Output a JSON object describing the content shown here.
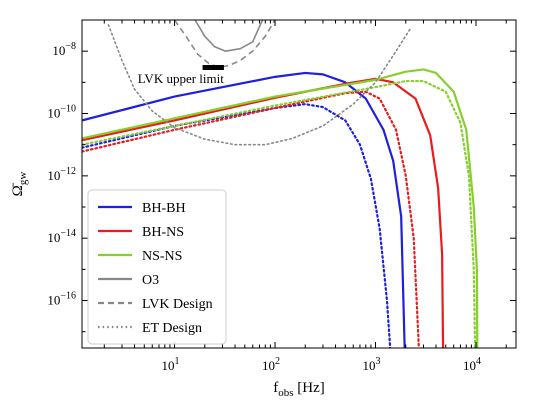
{
  "chart_data": {
    "type": "line",
    "xscale": "log",
    "yscale": "log",
    "xlim": [
      1.2,
      25000
    ],
    "ylim": [
      3e-18,
      1e-07
    ],
    "grid": false,
    "legend_position": "lower-left",
    "xlabel": {
      "base": "f",
      "sub": "obs",
      "rest": " [Hz]"
    },
    "ylabel": {
      "base": "Ω̄",
      "sub": "gw"
    },
    "x_ticks": [
      {
        "value": 10,
        "base": "10",
        "exp": "1"
      },
      {
        "value": 100,
        "base": "10",
        "exp": "2"
      },
      {
        "value": 1000,
        "base": "10",
        "exp": "3"
      },
      {
        "value": 10000,
        "base": "10",
        "exp": "4"
      }
    ],
    "y_ticks": [
      {
        "value": 1e-16,
        "base": "10",
        "exp": "−16"
      },
      {
        "value": 1e-14,
        "base": "10",
        "exp": "−14"
      },
      {
        "value": 1e-12,
        "base": "10",
        "exp": "−12"
      },
      {
        "value": 1e-10,
        "base": "10",
        "exp": "−10"
      },
      {
        "value": 1e-08,
        "base": "10",
        "exp": "−8"
      }
    ],
    "annotation": {
      "text": "LVK upper limit",
      "x": 4.3,
      "y": 7e-10,
      "bar_x": [
        19,
        31
      ],
      "bar_y": 3e-09
    },
    "legend": [
      {
        "label": "BH-BH",
        "color": "#1f1fe0",
        "style": "solid"
      },
      {
        "label": "BH-NS",
        "color": "#e81c1c",
        "style": "solid"
      },
      {
        "label": "NS-NS",
        "color": "#86cf2c",
        "style": "solid"
      },
      {
        "label": "O3",
        "color": "#888888",
        "style": "solid"
      },
      {
        "label": "LVK Design",
        "color": "#888888",
        "style": "dashed"
      },
      {
        "label": "ET Design",
        "color": "#888888",
        "style": "dotted"
      }
    ],
    "series": [
      {
        "label": "BH-BH",
        "color": "#1f1fe0",
        "style": "solid",
        "points": [
          [
            1.2,
            6e-11
          ],
          [
            10,
            3.5e-10
          ],
          [
            100,
            1.5e-09
          ],
          [
            200,
            2e-09
          ],
          [
            300,
            1.8e-09
          ],
          [
            500,
            1e-09
          ],
          [
            800,
            3e-10
          ],
          [
            1200,
            3e-11
          ],
          [
            1500,
            3e-12
          ],
          [
            1800,
            5e-14
          ],
          [
            1950,
            3e-18
          ]
        ]
      },
      {
        "label": "BH-BH",
        "color": "#1f1fe0",
        "style": "dotted",
        "points": [
          [
            1.2,
            8e-12
          ],
          [
            10,
            4e-11
          ],
          [
            100,
            1.5e-10
          ],
          [
            200,
            2e-10
          ],
          [
            300,
            1.6e-10
          ],
          [
            500,
            6e-11
          ],
          [
            700,
            1e-11
          ],
          [
            900,
            8e-13
          ],
          [
            1100,
            2e-14
          ],
          [
            1300,
            1e-16
          ],
          [
            1400,
            3e-18
          ]
        ]
      },
      {
        "label": "BH-NS",
        "color": "#e81c1c",
        "style": "solid",
        "points": [
          [
            1.2,
            1.4e-11
          ],
          [
            10,
            6e-11
          ],
          [
            100,
            3.2e-10
          ],
          [
            500,
            9e-10
          ],
          [
            1000,
            1.3e-09
          ],
          [
            1500,
            1e-09
          ],
          [
            2500,
            3e-10
          ],
          [
            3500,
            2e-11
          ],
          [
            4200,
            4e-13
          ],
          [
            4600,
            3e-15
          ],
          [
            4700,
            3e-18
          ]
        ]
      },
      {
        "label": "BH-NS",
        "color": "#e81c1c",
        "style": "dotted",
        "points": [
          [
            1.2,
            6e-12
          ],
          [
            10,
            3e-11
          ],
          [
            100,
            1.5e-10
          ],
          [
            500,
            4.5e-10
          ],
          [
            800,
            5e-10
          ],
          [
            1100,
            3e-10
          ],
          [
            1600,
            3e-11
          ],
          [
            2000,
            1e-12
          ],
          [
            2400,
            1e-14
          ],
          [
            2700,
            3e-18
          ]
        ]
      },
      {
        "label": "NS-NS",
        "color": "#86cf2c",
        "style": "solid",
        "points": [
          [
            1.2,
            1.6e-11
          ],
          [
            10,
            7e-11
          ],
          [
            100,
            3.5e-10
          ],
          [
            1000,
            1.2e-09
          ],
          [
            2000,
            2.2e-09
          ],
          [
            3000,
            2.6e-09
          ],
          [
            4000,
            2e-09
          ],
          [
            6000,
            5e-10
          ],
          [
            8000,
            3e-11
          ],
          [
            9500,
            1e-13
          ],
          [
            10200,
            1e-15
          ],
          [
            10300,
            3e-18
          ]
        ]
      },
      {
        "label": "NS-NS",
        "color": "#86cf2c",
        "style": "dotted",
        "points": [
          [
            1.2,
            1e-11
          ],
          [
            10,
            4e-11
          ],
          [
            100,
            1.8e-10
          ],
          [
            1000,
            7e-10
          ],
          [
            2000,
            1.1e-09
          ],
          [
            3000,
            1.1e-09
          ],
          [
            5000,
            5e-10
          ],
          [
            7000,
            5e-11
          ],
          [
            8500,
            1e-12
          ],
          [
            9500,
            1e-15
          ],
          [
            9800,
            3e-18
          ]
        ]
      },
      {
        "label": "O3",
        "color": "#888888",
        "style": "solid",
        "points": [
          [
            16,
            1e-07
          ],
          [
            20,
            3e-08
          ],
          [
            25,
            1.4e-08
          ],
          [
            32,
            1e-08
          ],
          [
            45,
            1.2e-08
          ],
          [
            60,
            2e-08
          ],
          [
            75,
            1e-07
          ]
        ]
      },
      {
        "label": "LVK Design",
        "color": "#888888",
        "style": "dashed",
        "points": [
          [
            10,
            1e-07
          ],
          [
            13,
            3e-08
          ],
          [
            17,
            8e-09
          ],
          [
            22,
            4e-09
          ],
          [
            28,
            3e-09
          ],
          [
            35,
            3.5e-09
          ],
          [
            45,
            5e-09
          ],
          [
            60,
            1e-08
          ],
          [
            80,
            3e-08
          ],
          [
            100,
            1e-07
          ]
        ]
      },
      {
        "label": "ET Design",
        "color": "#888888",
        "style": "dotted",
        "points": [
          [
            2.2,
            7e-08
          ],
          [
            3,
            5e-09
          ],
          [
            4,
            6e-10
          ],
          [
            6,
            1.2e-10
          ],
          [
            10,
            3.5e-11
          ],
          [
            20,
            1.5e-11
          ],
          [
            40,
            1e-11
          ],
          [
            80,
            1e-11
          ],
          [
            150,
            1.6e-11
          ],
          [
            300,
            4e-11
          ],
          [
            600,
            2e-10
          ],
          [
            1000,
            1e-09
          ],
          [
            1600,
            1e-08
          ],
          [
            2200,
            5e-08
          ]
        ]
      }
    ]
  }
}
